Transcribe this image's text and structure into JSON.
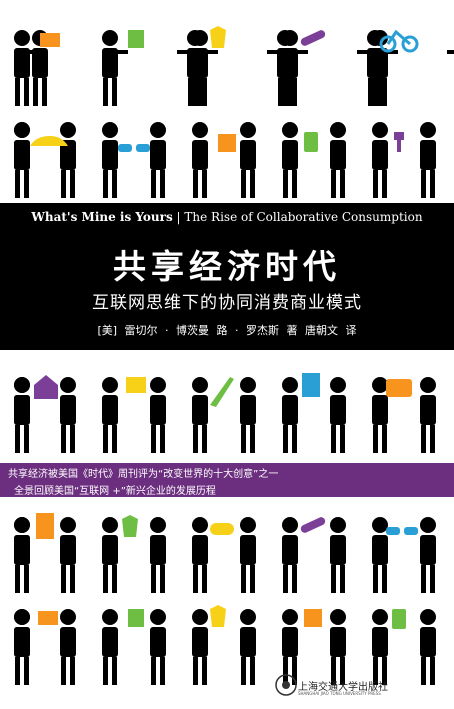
{
  "cover": {
    "english_subtitle_bold": "What's Mine is Yours",
    "english_subtitle_rest": " | The Rise of Collaborative Consumption",
    "title": "共享经济时代",
    "subtitle": "互联网思维下的协同消费商业模式",
    "authors": "[美] 雷切尔 · 博茨曼 路 · 罗杰斯 著 唐朝文 译",
    "promo_line1": "共享经济被美国《时代》周刊评为“改变世界的十大创意”之一",
    "promo_line2": "全景回顾美国“互联网 +”新兴企业的发展历程",
    "publisher_name": "上海交通大学出版社",
    "publisher_en": "SHANGHAI JIAO TONG UNIVERSITY PRESS"
  },
  "colors": {
    "band": "#000000",
    "promo": "#6c2f7f",
    "figure": "#000000",
    "item_orange": "#f7941d",
    "item_green": "#6fbe44",
    "item_yellow": "#f7d117",
    "item_purple": "#7b3f98",
    "item_blue": "#2a9fd6"
  },
  "rows": [
    {
      "icons": [
        "laptop-icon",
        "book-icon",
        "shirt-icon",
        "skateboard-icon",
        "bicycle-icon"
      ]
    },
    {
      "icons": [
        "car-icon",
        "sunglasses-icon",
        "box-icon",
        "ipod-icon",
        "key-icon"
      ]
    },
    {
      "icons": [
        "house-icon",
        "laptop-icon",
        "guitar-icon",
        "calculator-icon",
        "camera-icon"
      ]
    },
    {
      "icons": [
        "price-tag-icon",
        "shirt-icon",
        "gamepad-icon",
        "skateboard-icon",
        "sunglasses-icon"
      ]
    },
    {
      "icons": [
        "laptop-icon",
        "book-icon",
        "shirt-icon",
        "box-icon",
        "ipod-icon"
      ]
    }
  ]
}
